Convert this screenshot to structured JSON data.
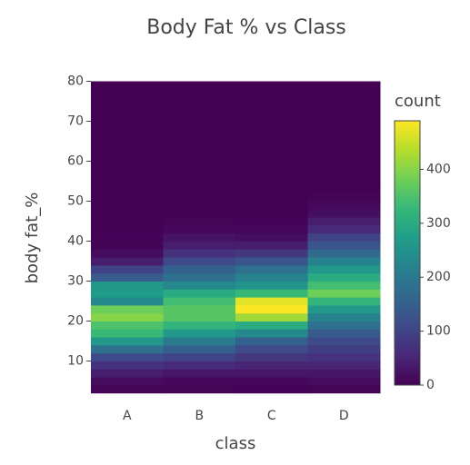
{
  "chart_data": {
    "type": "heatmap",
    "title": "Body Fat % vs Class",
    "x_label": "class",
    "y_label": "body fat_%",
    "colorbar_title": "count",
    "categories": [
      "A",
      "B",
      "C",
      "D"
    ],
    "ybins": [
      2,
      4,
      6,
      8,
      10,
      12,
      14,
      16,
      18,
      20,
      22,
      24,
      26,
      28,
      30,
      32,
      34,
      36,
      38,
      40,
      42,
      44,
      46,
      48,
      50,
      52,
      54,
      56,
      58,
      60,
      62,
      64,
      66,
      68,
      70,
      72,
      74,
      76,
      78,
      80
    ],
    "z": [
      [
        5,
        15,
        40,
        70,
        110,
        180,
        260,
        330,
        350,
        400,
        380,
        230,
        270,
        260,
        140,
        100,
        40,
        15,
        5,
        3,
        1,
        0,
        0,
        0,
        0,
        0,
        0,
        0,
        0,
        0,
        0,
        0,
        0,
        0,
        0,
        0,
        0,
        0,
        0
      ],
      [
        5,
        10,
        30,
        60,
        100,
        150,
        200,
        260,
        320,
        360,
        360,
        340,
        300,
        230,
        180,
        150,
        110,
        70,
        40,
        25,
        10,
        5,
        2,
        0,
        0,
        0,
        0,
        0,
        0,
        0,
        0,
        0,
        0,
        0,
        0,
        0,
        0,
        0,
        0
      ],
      [
        3,
        10,
        30,
        50,
        80,
        110,
        150,
        230,
        300,
        420,
        490,
        470,
        330,
        250,
        220,
        180,
        130,
        80,
        40,
        20,
        8,
        3,
        0,
        0,
        0,
        0,
        0,
        0,
        0,
        0,
        0,
        0,
        0,
        0,
        0,
        0,
        0,
        0,
        0
      ],
      [
        5,
        15,
        30,
        50,
        70,
        90,
        110,
        140,
        180,
        220,
        260,
        320,
        380,
        340,
        300,
        260,
        220,
        170,
        130,
        100,
        60,
        40,
        20,
        10,
        5,
        2,
        0,
        0,
        0,
        0,
        0,
        0,
        0,
        0,
        0,
        0,
        0,
        0,
        0
      ]
    ],
    "ylim": [
      2,
      80
    ],
    "yticks": [
      10,
      20,
      30,
      40,
      50,
      60,
      70,
      80
    ],
    "zlim": [
      0,
      490
    ],
    "zticks": [
      0,
      100,
      200,
      300,
      400
    ],
    "colorscale": [
      "#440154",
      "#482878",
      "#3e4989",
      "#31688e",
      "#26828e",
      "#1f9e89",
      "#35b779",
      "#6ece58",
      "#b5de2b",
      "#fde725"
    ]
  }
}
